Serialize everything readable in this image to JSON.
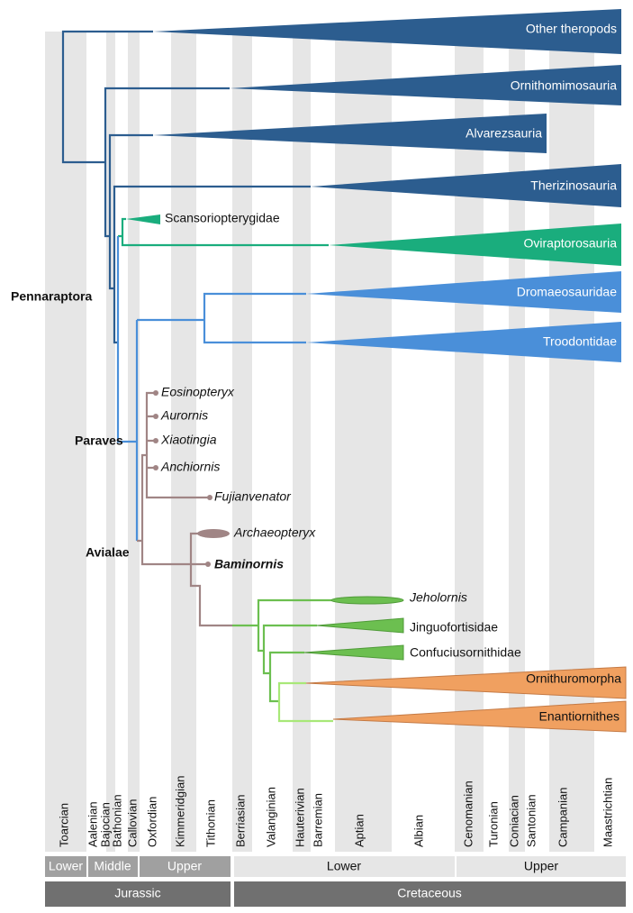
{
  "clades": [
    "Other theropods",
    "Ornithomimosauria",
    "Alvarezsauria",
    "Therizinosauria",
    "Scansoriopterygidae",
    "Oviraptorosauria",
    "Dromaeosauridae",
    "Troodontidae",
    "Jinguofortisidae",
    "Confuciusornithidae",
    "Ornithuromorpha",
    "Enantiornithes"
  ],
  "taxa": [
    "Eosinopteryx",
    "Aurornis",
    "Xiaotingia",
    "Anchiornis",
    "Fujianvenator",
    "Archaeopteryx",
    "Baminornis",
    "Jeholornis"
  ],
  "groups": [
    "Pennaraptora",
    "Paraves",
    "Avialae"
  ],
  "stages": [
    "Toarcian",
    "Aalenian",
    "Bajocian",
    "Bathonian",
    "Callovian",
    "Oxfordian",
    "Kimmeridgian",
    "Tithonian",
    "Berriasian",
    "Valanginian",
    "Hauterivian",
    "Barremian",
    "Aptian",
    "Albian",
    "Cenomanian",
    "Turonian",
    "Coniacian",
    "Santonian",
    "Campanian",
    "Maastrichtian"
  ],
  "epochs": [
    "Lower",
    "Middle",
    "Upper",
    "Lower",
    "Upper"
  ],
  "periods": [
    "Jurassic",
    "Cretaceous"
  ]
}
